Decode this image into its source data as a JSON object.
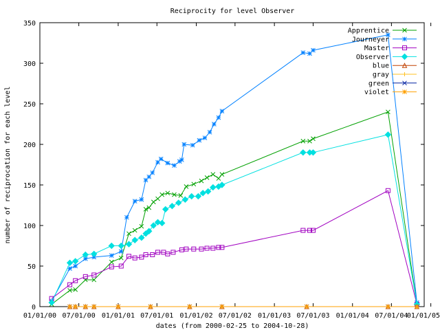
{
  "chart_data": {
    "type": "line",
    "title": "Reciprocity for level Observer",
    "xlabel": "dates (from 2000-02-25 to 2004-10-28)",
    "ylabel": "number of reciprocation for each level",
    "ylim": [
      0,
      350
    ],
    "xlim": [
      "2000-01-01",
      "2004-12-01"
    ],
    "yticks": [
      0,
      50,
      100,
      150,
      200,
      250,
      300,
      350
    ],
    "xtick_labels": [
      "01/01/00",
      "07/01/00",
      "01/01/01",
      "07/01/01",
      "01/01/02",
      "07/01/02",
      "01/01/03",
      "07/01/03",
      "01/01/04",
      "07/01/04",
      "01/01/05"
    ],
    "grid": false,
    "legend_position": "top-right",
    "series": [
      {
        "name": "Apprentice",
        "color": "#00a000",
        "marker": "x",
        "points": [
          [
            "2000-02-25",
            3
          ],
          [
            "2000-05-20",
            20
          ],
          [
            "2000-06-15",
            21
          ],
          [
            "2000-08-01",
            33
          ],
          [
            "2000-09-10",
            33
          ],
          [
            "2000-12-01",
            55
          ],
          [
            "2001-01-15",
            60
          ],
          [
            "2001-02-20",
            90
          ],
          [
            "2001-03-20",
            94
          ],
          [
            "2001-04-20",
            99
          ],
          [
            "2001-05-10",
            120
          ],
          [
            "2001-05-25",
            122
          ],
          [
            "2001-06-15",
            129
          ],
          [
            "2001-07-05",
            133
          ],
          [
            "2001-07-25",
            138
          ],
          [
            "2001-08-20",
            140
          ],
          [
            "2001-09-20",
            138
          ],
          [
            "2001-10-20",
            137
          ],
          [
            "2001-11-15",
            148
          ],
          [
            "2001-12-20",
            151
          ],
          [
            "2002-01-25",
            155
          ],
          [
            "2002-02-20",
            159
          ],
          [
            "2002-03-20",
            163
          ],
          [
            "2002-04-15",
            158
          ],
          [
            "2002-05-01",
            163
          ],
          [
            "2003-05-15",
            204
          ],
          [
            "2003-06-15",
            204
          ],
          [
            "2003-07-01",
            207
          ],
          [
            "2004-06-15",
            240
          ],
          [
            "2004-10-28",
            3
          ]
        ]
      },
      {
        "name": "Journeyer",
        "color": "#0080ff",
        "marker": "*",
        "points": [
          [
            "2000-02-25",
            7
          ],
          [
            "2000-05-20",
            47
          ],
          [
            "2000-06-15",
            50
          ],
          [
            "2000-08-01",
            59
          ],
          [
            "2000-09-10",
            61
          ],
          [
            "2000-12-01",
            63
          ],
          [
            "2001-01-15",
            68
          ],
          [
            "2001-02-10",
            110
          ],
          [
            "2001-03-20",
            130
          ],
          [
            "2001-04-20",
            132
          ],
          [
            "2001-05-10",
            156
          ],
          [
            "2001-05-25",
            160
          ],
          [
            "2001-06-10",
            165
          ],
          [
            "2001-07-05",
            178
          ],
          [
            "2001-07-20",
            182
          ],
          [
            "2001-08-20",
            177
          ],
          [
            "2001-09-20",
            174
          ],
          [
            "2001-10-15",
            179
          ],
          [
            "2001-10-25",
            181
          ],
          [
            "2001-11-05",
            200
          ],
          [
            "2001-12-15",
            199
          ],
          [
            "2002-01-15",
            205
          ],
          [
            "2002-02-10",
            208
          ],
          [
            "2002-03-05",
            215
          ],
          [
            "2002-03-25",
            225
          ],
          [
            "2002-04-15",
            233
          ],
          [
            "2002-05-01",
            241
          ],
          [
            "2003-05-15",
            313
          ],
          [
            "2003-06-15",
            312
          ],
          [
            "2003-07-01",
            316
          ],
          [
            "2004-06-15",
            335
          ],
          [
            "2004-10-28",
            5
          ]
        ]
      },
      {
        "name": "Master",
        "color": "#a000c0",
        "marker": "square",
        "points": [
          [
            "2000-02-25",
            10
          ],
          [
            "2000-05-20",
            27
          ],
          [
            "2000-06-15",
            32
          ],
          [
            "2000-08-01",
            37
          ],
          [
            "2000-09-10",
            39
          ],
          [
            "2000-12-01",
            49
          ],
          [
            "2001-01-15",
            50
          ],
          [
            "2001-02-20",
            62
          ],
          [
            "2001-03-20",
            60
          ],
          [
            "2001-04-20",
            61
          ],
          [
            "2001-05-10",
            64
          ],
          [
            "2001-06-10",
            64
          ],
          [
            "2001-07-05",
            67
          ],
          [
            "2001-08-01",
            67
          ],
          [
            "2001-08-20",
            65
          ],
          [
            "2001-09-15",
            67
          ],
          [
            "2001-10-25",
            70
          ],
          [
            "2001-11-15",
            71
          ],
          [
            "2001-12-20",
            71
          ],
          [
            "2002-01-25",
            71
          ],
          [
            "2002-02-20",
            72
          ],
          [
            "2002-03-20",
            72
          ],
          [
            "2002-04-15",
            73
          ],
          [
            "2002-05-01",
            73
          ],
          [
            "2003-05-15",
            94
          ],
          [
            "2003-06-15",
            94
          ],
          [
            "2003-07-01",
            94
          ],
          [
            "2004-06-15",
            143
          ],
          [
            "2004-10-28",
            3
          ]
        ]
      },
      {
        "name": "Observer",
        "color": "#00e0e0",
        "marker": "diamond",
        "points": [
          [
            "2000-02-25",
            5
          ],
          [
            "2000-05-20",
            54
          ],
          [
            "2000-06-15",
            56
          ],
          [
            "2000-08-01",
            64
          ],
          [
            "2000-09-10",
            65
          ],
          [
            "2000-12-01",
            75
          ],
          [
            "2001-01-15",
            75
          ],
          [
            "2001-02-20",
            77
          ],
          [
            "2001-03-20",
            82
          ],
          [
            "2001-04-20",
            85
          ],
          [
            "2001-05-10",
            90
          ],
          [
            "2001-05-25",
            93
          ],
          [
            "2001-06-15",
            100
          ],
          [
            "2001-07-05",
            104
          ],
          [
            "2001-07-25",
            103
          ],
          [
            "2001-08-10",
            120
          ],
          [
            "2001-09-10",
            124
          ],
          [
            "2001-10-10",
            128
          ],
          [
            "2001-11-10",
            132
          ],
          [
            "2001-12-10",
            136
          ],
          [
            "2002-01-10",
            136
          ],
          [
            "2002-02-01",
            140
          ],
          [
            "2002-02-25",
            142
          ],
          [
            "2002-03-20",
            147
          ],
          [
            "2002-04-15",
            148
          ],
          [
            "2002-05-01",
            150
          ],
          [
            "2003-05-15",
            190
          ],
          [
            "2003-06-15",
            190
          ],
          [
            "2003-07-01",
            190
          ],
          [
            "2004-06-15",
            212
          ],
          [
            "2004-10-28",
            3
          ]
        ]
      },
      {
        "name": "blue",
        "color": "#c04000",
        "marker": "triangle",
        "points": [
          [
            "2000-05-20",
            0
          ],
          [
            "2000-06-15",
            0
          ],
          [
            "2000-08-01",
            0
          ],
          [
            "2000-09-10",
            0
          ],
          [
            "2001-01-01",
            0
          ],
          [
            "2001-06-01",
            0
          ],
          [
            "2001-12-01",
            0
          ],
          [
            "2002-05-01",
            0
          ],
          [
            "2003-06-01",
            0
          ],
          [
            "2004-06-15",
            0
          ],
          [
            "2004-10-28",
            0
          ]
        ]
      },
      {
        "name": "gray",
        "color": "#ffc020",
        "marker": "plus",
        "points": [
          [
            "2000-05-20",
            0
          ],
          [
            "2000-06-15",
            0
          ],
          [
            "2000-08-01",
            0
          ],
          [
            "2000-09-10",
            0
          ],
          [
            "2001-01-01",
            0
          ],
          [
            "2001-06-01",
            0
          ],
          [
            "2001-12-01",
            0
          ],
          [
            "2002-05-01",
            0
          ],
          [
            "2003-06-01",
            0
          ],
          [
            "2004-06-15",
            0
          ],
          [
            "2004-10-28",
            0
          ]
        ]
      },
      {
        "name": "green",
        "color": "#0020a0",
        "marker": "x",
        "points": [
          [
            "2000-05-20",
            0
          ],
          [
            "2000-06-15",
            0
          ],
          [
            "2000-08-01",
            0
          ],
          [
            "2000-09-10",
            0
          ],
          [
            "2001-01-01",
            0
          ],
          [
            "2001-06-01",
            0
          ],
          [
            "2001-12-01",
            0
          ],
          [
            "2002-05-01",
            0
          ],
          [
            "2003-06-01",
            0
          ],
          [
            "2004-06-15",
            0
          ],
          [
            "2004-10-28",
            0
          ]
        ]
      },
      {
        "name": "violet",
        "color": "#ffa000",
        "marker": "star",
        "points": [
          [
            "2000-05-20",
            0
          ],
          [
            "2000-06-15",
            0
          ],
          [
            "2000-08-01",
            0
          ],
          [
            "2000-09-10",
            0
          ],
          [
            "2001-01-01",
            0
          ],
          [
            "2001-06-01",
            0
          ],
          [
            "2001-12-01",
            0
          ],
          [
            "2002-05-01",
            0
          ],
          [
            "2003-06-01",
            0
          ],
          [
            "2004-06-15",
            0
          ],
          [
            "2004-10-28",
            0
          ]
        ]
      }
    ]
  }
}
